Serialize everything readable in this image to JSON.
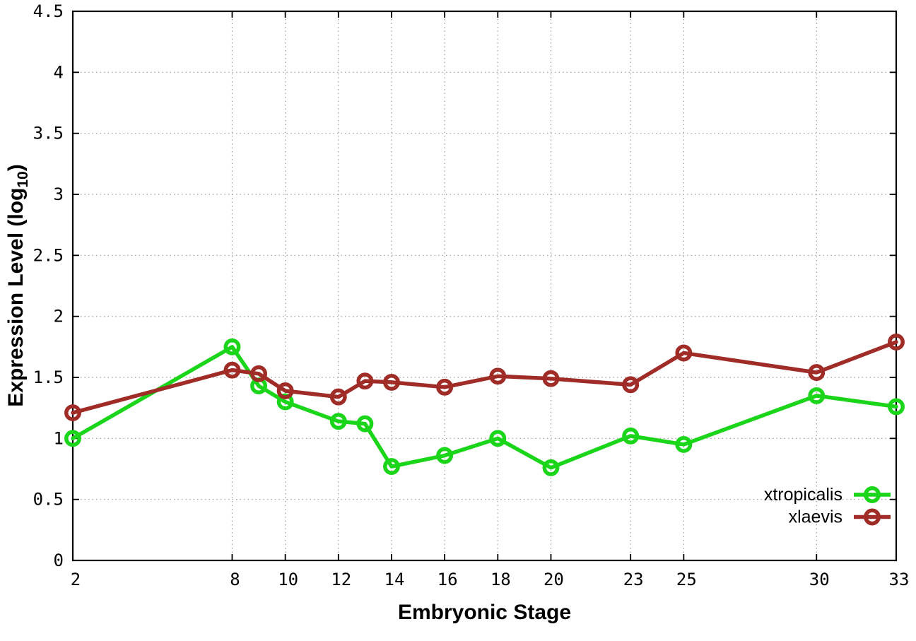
{
  "colors": {
    "background": "#ffffff",
    "border": "#000000",
    "grid": "#9b9b9b",
    "text": "#000000",
    "xtropicalis": "#1bd51b",
    "xlaevis": "#a02c28"
  },
  "chart_data": {
    "type": "line",
    "title": "",
    "xlabel": "Embryonic Stage",
    "ylabel": {
      "pre": "Expression Level (log",
      "sub": "10",
      "post": ")"
    },
    "xlim": [
      2,
      33
    ],
    "ylim": [
      0,
      4.5
    ],
    "grid": true,
    "legend_position": "bottom-right",
    "x_ticks": [
      2,
      8,
      10,
      12,
      14,
      16,
      18,
      20,
      23,
      25,
      30,
      33
    ],
    "x_tick_labels": [
      "2",
      "8",
      "10",
      "12",
      "14",
      "16",
      "18",
      "20",
      "23",
      "25",
      "30",
      "33"
    ],
    "y_ticks": [
      0,
      0.5,
      1,
      1.5,
      2,
      2.5,
      3,
      3.5,
      4,
      4.5
    ],
    "y_tick_labels": [
      "0",
      "0.5",
      "1",
      "1.5",
      "2",
      "2.5",
      "3",
      "3.5",
      "4",
      "4.5"
    ],
    "x": [
      2,
      8,
      9,
      10,
      12,
      13,
      14,
      16,
      18,
      20,
      23,
      25,
      30,
      33
    ],
    "series": [
      {
        "name": "xtropicalis",
        "color": "#1bd51b",
        "values": [
          1.0,
          1.75,
          1.43,
          1.3,
          1.14,
          1.12,
          0.77,
          0.86,
          1.0,
          0.76,
          1.02,
          0.95,
          1.35,
          1.26
        ]
      },
      {
        "name": "xlaevis",
        "color": "#a02c28",
        "values": [
          1.21,
          1.56,
          1.53,
          1.39,
          1.34,
          1.47,
          1.46,
          1.42,
          1.51,
          1.49,
          1.44,
          1.7,
          1.54,
          1.79
        ]
      }
    ]
  }
}
